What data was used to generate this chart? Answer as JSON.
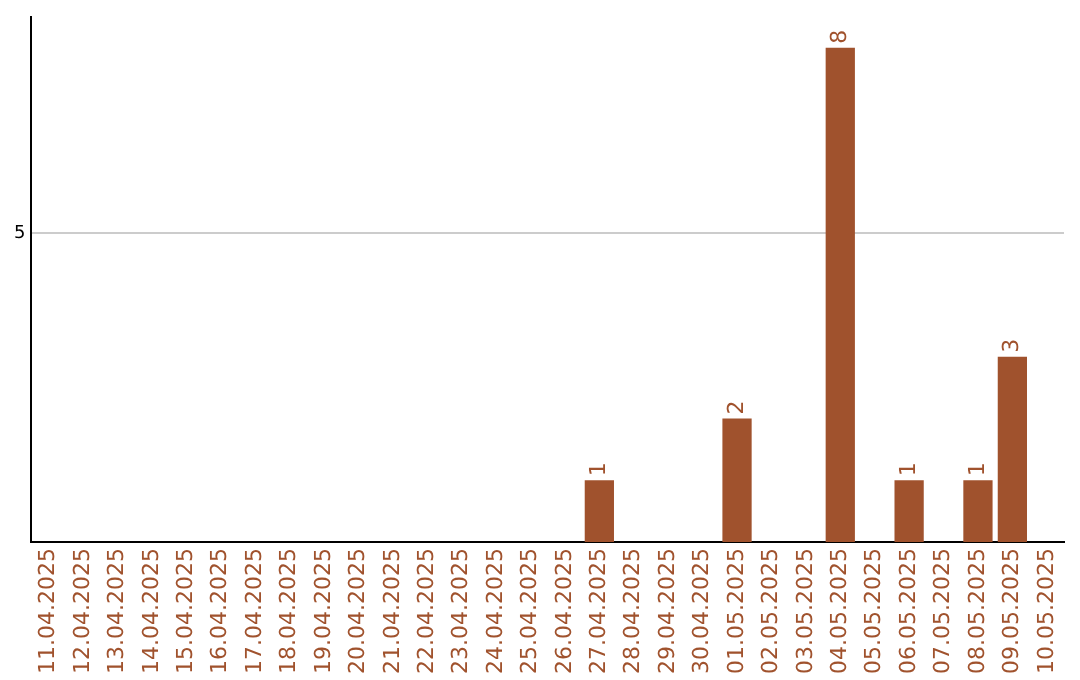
{
  "chart_data": {
    "type": "bar",
    "categories": [
      "11.04.2025",
      "12.04.2025",
      "13.04.2025",
      "14.04.2025",
      "15.04.2025",
      "16.04.2025",
      "17.04.2025",
      "18.04.2025",
      "19.04.2025",
      "20.04.2025",
      "21.04.2025",
      "22.04.2025",
      "23.04.2025",
      "24.04.2025",
      "25.04.2025",
      "26.04.2025",
      "27.04.2025",
      "28.04.2025",
      "29.04.2025",
      "30.04.2025",
      "01.05.2025",
      "02.05.2025",
      "03.05.2025",
      "04.05.2025",
      "05.05.2025",
      "06.05.2025",
      "07.05.2025",
      "08.05.2025",
      "09.05.2025",
      "10.05.2025"
    ],
    "values": [
      null,
      null,
      null,
      null,
      null,
      null,
      null,
      null,
      null,
      null,
      null,
      null,
      null,
      null,
      null,
      null,
      1,
      null,
      null,
      null,
      2,
      null,
      null,
      8,
      null,
      1,
      null,
      1,
      3,
      null
    ],
    "data_labels": true,
    "color": "#a0522d",
    "ylim": [
      0,
      8.5
    ],
    "yticks": [
      5
    ],
    "grid": "y"
  }
}
